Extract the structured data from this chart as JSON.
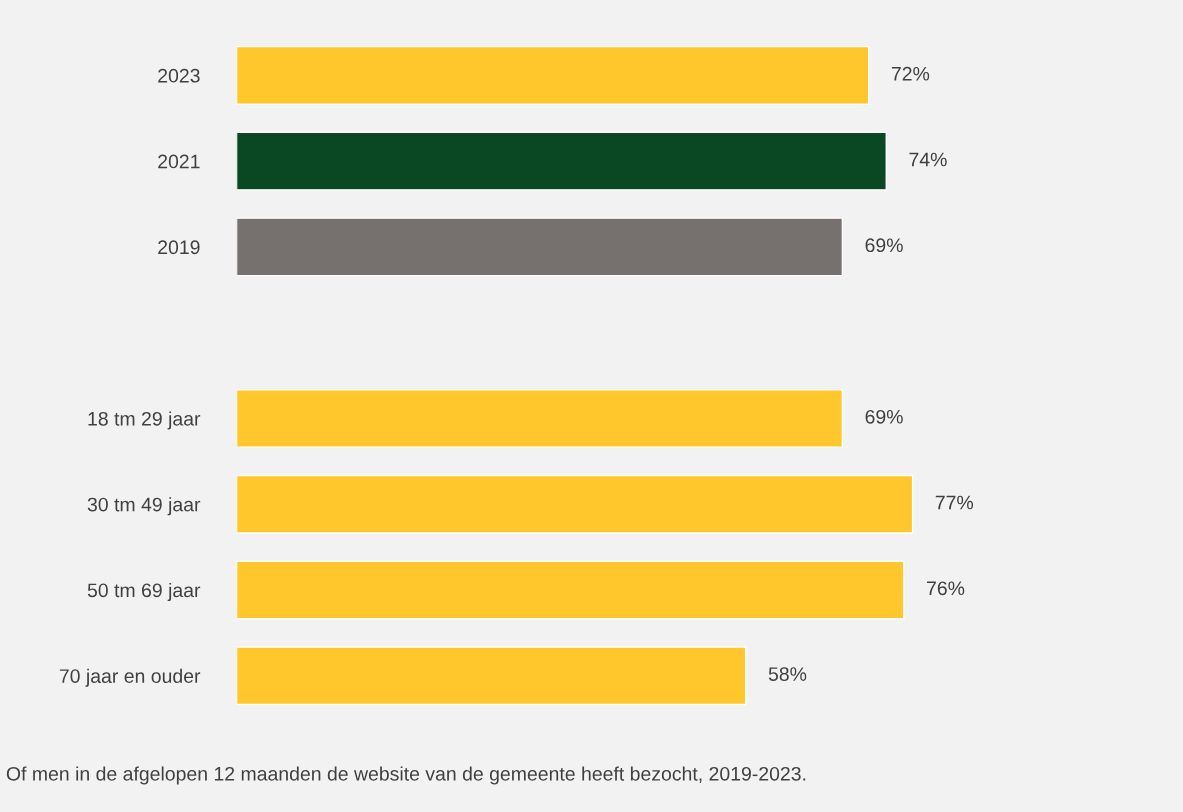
{
  "chart_data": {
    "type": "bar",
    "orientation": "horizontal",
    "categories": [
      "2023",
      "2021",
      "2019",
      null,
      "18 tm 29 jaar",
      "30 tm 49 jaar",
      "50 tm 69 jaar",
      "70 jaar en ouder"
    ],
    "values": [
      72,
      74,
      69,
      null,
      69,
      77,
      76,
      58
    ],
    "colors": [
      "#ffc72c",
      "#0a4824",
      "#76706e",
      null,
      "#ffc72c",
      "#ffc72c",
      "#ffc72c",
      "#ffc72c"
    ],
    "value_labels": [
      "72%",
      "74%",
      "69%",
      null,
      "69%",
      "77%",
      "76%",
      "58%"
    ],
    "tick_labels": "y",
    "grid": false,
    "legend": false,
    "annotations": [
      "Of men in de afgelopen 12 maanden de website van de gemeente heeft bezocht, 2019-2023."
    ]
  }
}
